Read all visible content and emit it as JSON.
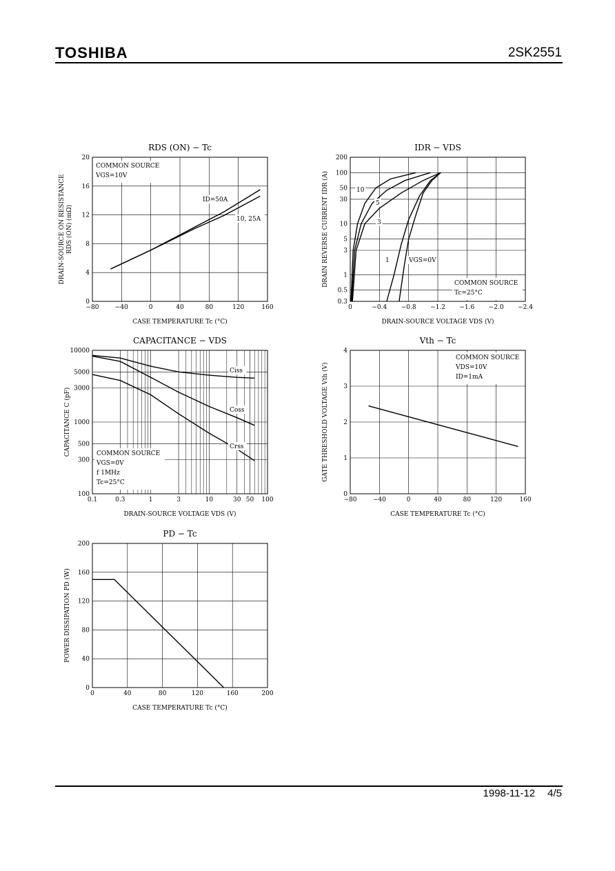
{
  "header": {
    "brand": "TOSHIBA",
    "part_number": "2SK2551"
  },
  "footer": {
    "date": "1998-11-12",
    "page": "4/5"
  },
  "chart_data": [
    {
      "id": "rds",
      "type": "line",
      "title": "RDS (ON) − Tc",
      "xlabel": "CASE TEMPERATURE   Tc   (°C)",
      "ylabel": "DRAIN-SOURCE ON RESISTANCE",
      "ylabel2": "RDS (ON)   (mΩ)",
      "xlim": [
        -80,
        160
      ],
      "ylim": [
        0,
        20
      ],
      "xticks": [
        -80,
        -40,
        0,
        40,
        80,
        120,
        160
      ],
      "xtick_labels": [
        "−80",
        "−40",
        "0",
        "40",
        "80",
        "120",
        "160"
      ],
      "yticks": [
        0,
        4,
        8,
        12,
        16,
        20
      ],
      "ytick_labels": [
        "0",
        "4",
        "8",
        "12",
        "16",
        "20"
      ],
      "notes": [
        "COMMON SOURCE",
        "VGS=10V"
      ],
      "series": [
        {
          "name": "ID=50A",
          "x": [
            -55,
            0,
            60,
            100,
            150
          ],
          "y": [
            4.5,
            7.1,
            10.3,
            12.4,
            15.5
          ]
        },
        {
          "name": "10, 25A",
          "x": [
            -55,
            0,
            60,
            100,
            150
          ],
          "y": [
            4.5,
            7.1,
            10.1,
            11.9,
            14.6
          ]
        }
      ]
    },
    {
      "id": "idr",
      "type": "line",
      "title": "IDR − VDS",
      "xlabel": "DRAIN-SOURCE VOLTAGE   VDS   (V)",
      "ylabel": "DRAIN REVERSE CURRENT   IDR   (A)",
      "xlim": [
        0,
        -2.4
      ],
      "ylim": [
        0.3,
        200
      ],
      "yscale": "log",
      "xticks": [
        0,
        -0.4,
        -0.8,
        -1.2,
        -1.6,
        -2.0,
        -2.4
      ],
      "xtick_labels": [
        "0",
        "−0.4",
        "−0.8",
        "−1.2",
        "−1.6",
        "−2.0",
        "−2.4"
      ],
      "yticks": [
        0.3,
        0.5,
        1,
        3,
        5,
        10,
        30,
        50,
        100,
        200
      ],
      "ytick_labels": [
        "0.3",
        "0.5",
        "1",
        "3",
        "5",
        "10",
        "30",
        "50",
        "100",
        "200"
      ],
      "notes": [
        "COMMON SOURCE",
        "Tc=25°C"
      ],
      "series": [
        {
          "name": "10",
          "x": [
            -0.01,
            -0.04,
            -0.1,
            -0.2,
            -0.35,
            -0.55,
            -0.9
          ],
          "y": [
            0.3,
            3,
            10,
            25,
            50,
            75,
            100
          ]
        },
        {
          "name": "5",
          "x": [
            -0.02,
            -0.06,
            -0.15,
            -0.3,
            -0.5,
            -0.75,
            -1.1
          ],
          "y": [
            0.3,
            3,
            10,
            25,
            45,
            70,
            100
          ]
        },
        {
          "name": "3",
          "x": [
            -0.03,
            -0.08,
            -0.2,
            -0.4,
            -0.7,
            -1.0,
            -1.24
          ],
          "y": [
            0.3,
            3,
            10,
            20,
            40,
            70,
            100
          ]
        },
        {
          "name": "1",
          "x": [
            -0.5,
            -0.6,
            -0.7,
            -0.8,
            -0.95,
            -1.1,
            -1.24
          ],
          "y": [
            0.3,
            1,
            4,
            12,
            35,
            70,
            100
          ]
        },
        {
          "name": "VGS=0V",
          "x": [
            -0.67,
            -0.74,
            -0.8,
            -0.9,
            -1.0,
            -1.12,
            -1.24
          ],
          "y": [
            0.3,
            1.5,
            5,
            15,
            40,
            70,
            100
          ]
        }
      ]
    },
    {
      "id": "cap",
      "type": "line",
      "title": "CAPACITANCE − VDS",
      "xlabel": "DRAIN-SOURCE VOLTAGE   VDS   (V)",
      "ylabel": "CAPACITANCE   C   (pF)",
      "xlim": [
        0.1,
        100
      ],
      "ylim": [
        100,
        10000
      ],
      "xscale": "log",
      "yscale": "log",
      "xticks": [
        0.1,
        0.3,
        1,
        3,
        10,
        30,
        50,
        100
      ],
      "xtick_labels": [
        "0.1",
        "0.3",
        "1",
        "3",
        "10",
        "30",
        "50",
        "100"
      ],
      "yticks": [
        100,
        300,
        500,
        1000,
        3000,
        5000,
        10000
      ],
      "ytick_labels": [
        "100",
        "300",
        "500",
        "1000",
        "3000",
        "5000",
        "10000"
      ],
      "notes": [
        "COMMON SOURCE",
        "VGS=0V",
        "f   1MHz",
        "Tc=25°C"
      ],
      "series": [
        {
          "name": "Ciss",
          "x": [
            0.1,
            0.3,
            1,
            3,
            10,
            30,
            60
          ],
          "y": [
            8500,
            7800,
            6000,
            5000,
            4500,
            4200,
            4100
          ]
        },
        {
          "name": "Coss",
          "x": [
            0.1,
            0.3,
            1,
            3,
            10,
            30,
            60
          ],
          "y": [
            8300,
            7000,
            4200,
            2600,
            1650,
            1150,
            900
          ]
        },
        {
          "name": "Crss",
          "x": [
            0.1,
            0.3,
            1,
            3,
            10,
            30,
            60
          ],
          "y": [
            4600,
            3800,
            2400,
            1300,
            700,
            420,
            290
          ]
        }
      ]
    },
    {
      "id": "vth",
      "type": "line",
      "title": "Vth − Tc",
      "xlabel": "CASE TEMPERATURE   Tc   (°C)",
      "ylabel": "GATE THRESHOLD VOLTAGE   Vth   (V)",
      "xlim": [
        -80,
        160
      ],
      "ylim": [
        0,
        4
      ],
      "xticks": [
        -80,
        -40,
        0,
        40,
        80,
        120,
        160
      ],
      "xtick_labels": [
        "−80",
        "−40",
        "0",
        "40",
        "80",
        "120",
        "160"
      ],
      "yticks": [
        0,
        1,
        2,
        3,
        4
      ],
      "ytick_labels": [
        "0",
        "1",
        "2",
        "3",
        "4"
      ],
      "notes": [
        "COMMON SOURCE",
        "VDS=10V",
        "ID=1mA"
      ],
      "series": [
        {
          "name": "",
          "x": [
            -55,
            150
          ],
          "y": [
            2.45,
            1.32
          ]
        }
      ]
    },
    {
      "id": "pd",
      "type": "line",
      "title": "PD − Tc",
      "xlabel": "CASE TEMPERATURE   Tc   (°C)",
      "ylabel": "POWER DISSIPATION   PD   (W)",
      "xlim": [
        0,
        200
      ],
      "ylim": [
        0,
        200
      ],
      "xticks": [
        0,
        40,
        80,
        120,
        160,
        200
      ],
      "xtick_labels": [
        "0",
        "40",
        "80",
        "120",
        "160",
        "200"
      ],
      "yticks": [
        0,
        40,
        80,
        120,
        160,
        200
      ],
      "ytick_labels": [
        "0",
        "40",
        "80",
        "120",
        "160",
        "200"
      ],
      "notes": [],
      "series": [
        {
          "name": "",
          "x": [
            0,
            25,
            150
          ],
          "y": [
            150,
            150,
            0
          ]
        }
      ]
    }
  ]
}
